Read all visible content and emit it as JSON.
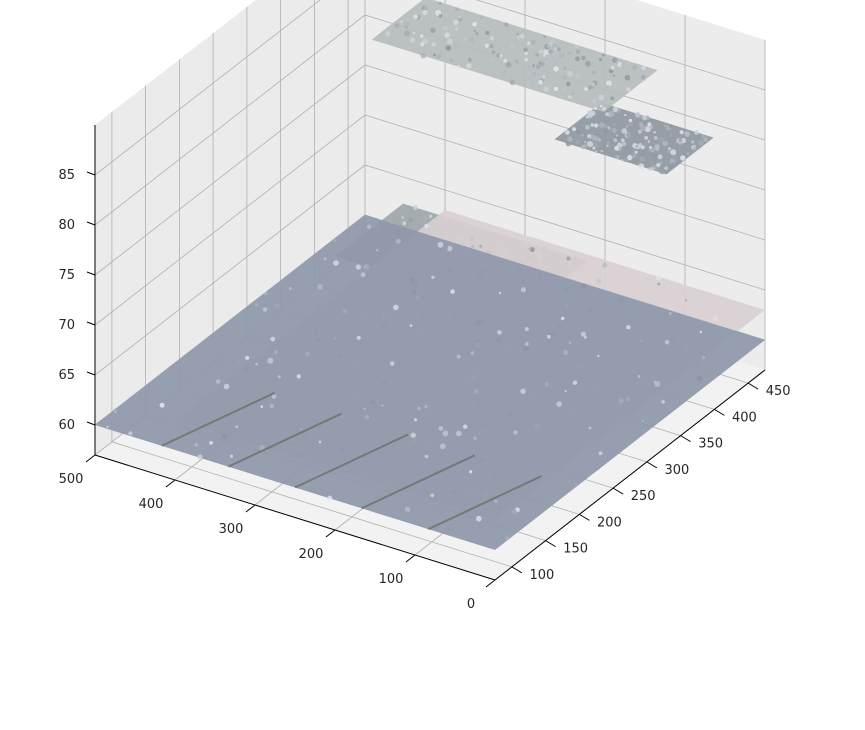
{
  "chart_data": {
    "type": "scatter",
    "projection": "3d",
    "title": "",
    "xlabel": "",
    "ylabel": "",
    "zlabel": "",
    "grid": true,
    "x_ticks": [
      0,
      100,
      200,
      300,
      400,
      500
    ],
    "y_ticks": [
      100,
      150,
      200,
      250,
      300,
      350,
      400,
      450
    ],
    "z_ticks": [
      60,
      65,
      70,
      75,
      80,
      85
    ],
    "x_range": [
      0,
      500
    ],
    "y_range": [
      75,
      475
    ],
    "z_range": [
      57,
      90
    ],
    "colors": {
      "pane": "#f2f2f2",
      "grid": "#b0b0b0",
      "ground": "#8e98aa",
      "ground_joint": "#5c6450",
      "stair": "#b8c0c0",
      "stair_edge": "#dcd2d6",
      "block": "#8e9aa0"
    },
    "surfaces": [
      {
        "name": "ground",
        "color": "#8e98aa",
        "x": [
          0,
          500
        ],
        "y": [
          75,
          475
        ],
        "z": 60
      },
      {
        "name": "lower-wall",
        "color": "#d8cfd2",
        "x": [
          0,
          400
        ],
        "y": [
          75,
          475
        ],
        "z": 63
      },
      {
        "name": "middle-step",
        "color": "#9ea6aa",
        "x": [
          100,
          330
        ],
        "y": [
          230,
          330
        ],
        "z": 73
      },
      {
        "name": "upper-step",
        "color": "#b6bdbd",
        "x": [
          130,
          420
        ],
        "y": [
          390,
          470
        ],
        "z": 84
      },
      {
        "name": "upper-step-right",
        "color": "#8e989e",
        "x": [
          60,
          200
        ],
        "y": [
          400,
          470
        ],
        "z": 79
      }
    ]
  }
}
